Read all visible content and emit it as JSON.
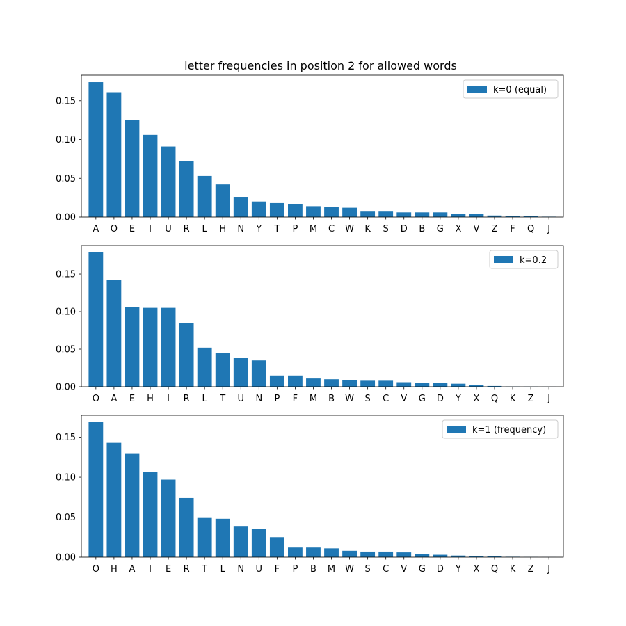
{
  "chart_data": [
    {
      "type": "bar",
      "title": "letter frequencies in position 2 for allowed words",
      "legend": {
        "label": "k=0 (equal)",
        "placement": "top-right"
      },
      "color": "#1f77b4",
      "categories": [
        "A",
        "O",
        "E",
        "I",
        "U",
        "R",
        "L",
        "H",
        "N",
        "Y",
        "T",
        "P",
        "M",
        "C",
        "W",
        "K",
        "S",
        "D",
        "B",
        "G",
        "X",
        "V",
        "Z",
        "F",
        "Q",
        "J"
      ],
      "values": [
        0.174,
        0.161,
        0.125,
        0.106,
        0.091,
        0.072,
        0.053,
        0.042,
        0.026,
        0.02,
        0.018,
        0.017,
        0.014,
        0.013,
        0.012,
        0.007,
        0.007,
        0.006,
        0.006,
        0.006,
        0.004,
        0.004,
        0.002,
        0.0015,
        0.001,
        0.0005
      ],
      "ylim": [
        0,
        0.183
      ],
      "yticks": [
        "0.00",
        "0.05",
        "0.10",
        "0.15"
      ]
    },
    {
      "type": "bar",
      "title": "",
      "legend": {
        "label": "k=0.2",
        "placement": "top-right"
      },
      "color": "#1f77b4",
      "categories": [
        "O",
        "A",
        "E",
        "H",
        "I",
        "R",
        "L",
        "T",
        "U",
        "N",
        "P",
        "F",
        "M",
        "B",
        "W",
        "S",
        "C",
        "V",
        "G",
        "D",
        "Y",
        "X",
        "Q",
        "K",
        "Z",
        "J"
      ],
      "values": [
        0.179,
        0.142,
        0.106,
        0.105,
        0.105,
        0.085,
        0.052,
        0.045,
        0.038,
        0.035,
        0.015,
        0.015,
        0.011,
        0.01,
        0.009,
        0.008,
        0.008,
        0.006,
        0.005,
        0.005,
        0.004,
        0.002,
        0.001,
        0.0003,
        0.0002,
        0.0001
      ],
      "ylim": [
        0,
        0.188
      ],
      "yticks": [
        "0.00",
        "0.05",
        "0.10",
        "0.15"
      ]
    },
    {
      "type": "bar",
      "title": "",
      "legend": {
        "label": "k=1 (frequency)",
        "placement": "top-right"
      },
      "color": "#1f77b4",
      "categories": [
        "O",
        "H",
        "A",
        "I",
        "E",
        "R",
        "T",
        "L",
        "N",
        "U",
        "F",
        "P",
        "B",
        "M",
        "W",
        "S",
        "C",
        "V",
        "G",
        "D",
        "Y",
        "X",
        "Q",
        "K",
        "Z",
        "J"
      ],
      "values": [
        0.169,
        0.143,
        0.13,
        0.107,
        0.097,
        0.074,
        0.049,
        0.048,
        0.039,
        0.035,
        0.025,
        0.012,
        0.012,
        0.011,
        0.008,
        0.007,
        0.007,
        0.006,
        0.004,
        0.003,
        0.002,
        0.0015,
        0.001,
        0.0005,
        0.0002,
        0.0001
      ],
      "ylim": [
        0,
        0.1775
      ],
      "yticks": [
        "0.00",
        "0.05",
        "0.10",
        "0.15"
      ]
    }
  ]
}
